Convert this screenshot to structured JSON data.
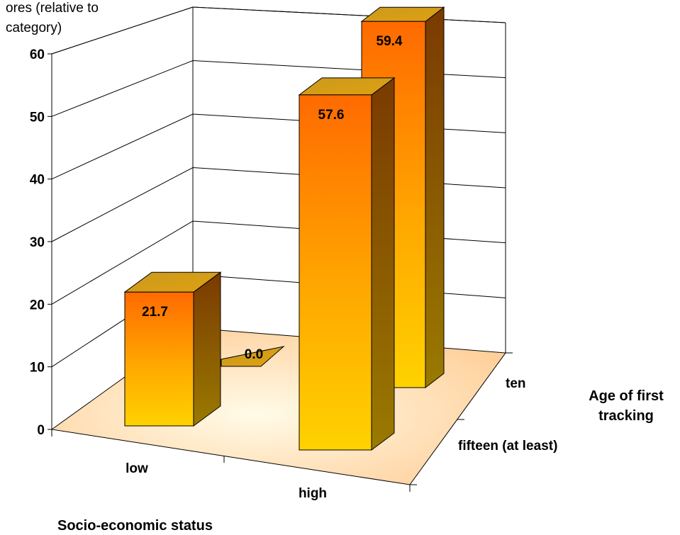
{
  "chart_data": {
    "type": "bar",
    "subtype": "3d-column",
    "ylabel_lines": [
      "ores (relative to",
      "category)"
    ],
    "ylim": [
      0,
      60
    ],
    "yticks": [
      0,
      10,
      20,
      30,
      40,
      50,
      60
    ],
    "x_axis": {
      "title": "Socio-economic status",
      "categories": [
        "low",
        "high"
      ]
    },
    "depth_axis": {
      "title_lines": [
        "Age of first",
        "tracking"
      ],
      "categories": [
        "fifteen (at least)",
        "ten"
      ]
    },
    "series": [
      {
        "name": "fifteen (at least)",
        "values": [
          21.7,
          57.6
        ]
      },
      {
        "name": "ten",
        "values": [
          0.0,
          59.4
        ]
      }
    ],
    "value_labels": [
      "21.7",
      "57.6",
      "0.0",
      "59.4"
    ],
    "grid": true,
    "colors": {
      "bar_top": "#ff7a00",
      "bar_bottom": "#ffd000",
      "bar_side": "#8a5a00",
      "floor": "#ffd9a8",
      "gridline": "#000000"
    }
  }
}
